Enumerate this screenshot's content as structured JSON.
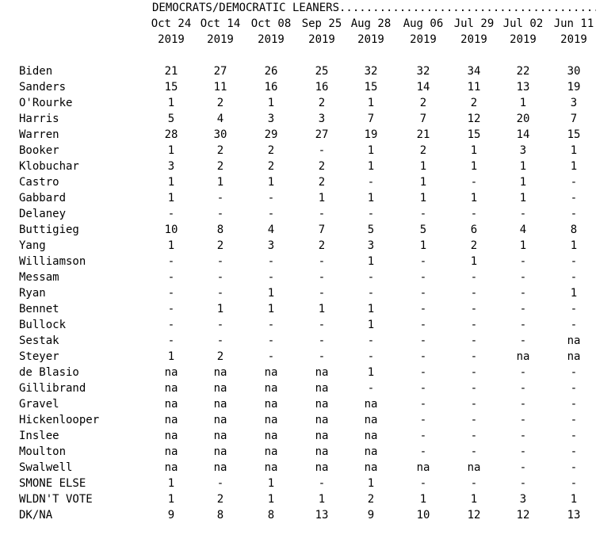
{
  "section_title": "DEMOCRATS/DEMOCRATIC LEANERS..........................................",
  "columns": [
    {
      "date": "Oct 24",
      "year": "2019"
    },
    {
      "date": "Oct 14",
      "year": "2019"
    },
    {
      "date": "Oct 08",
      "year": "2019"
    },
    {
      "date": "Sep 25",
      "year": "2019"
    },
    {
      "date": "Aug 28",
      "year": "2019"
    },
    {
      "date": "Aug 06",
      "year": "2019"
    },
    {
      "date": "Jul 29",
      "year": "2019"
    },
    {
      "date": "Jul 02",
      "year": "2019"
    },
    {
      "date": "Jun 11",
      "year": "2019"
    }
  ],
  "rows": [
    {
      "name": "Biden",
      "values": [
        "21",
        "27",
        "26",
        "25",
        "32",
        "32",
        "34",
        "22",
        "30"
      ]
    },
    {
      "name": "Sanders",
      "values": [
        "15",
        "11",
        "16",
        "16",
        "15",
        "14",
        "11",
        "13",
        "19"
      ]
    },
    {
      "name": "O'Rourke",
      "values": [
        "1",
        "2",
        "1",
        "2",
        "1",
        "2",
        "2",
        "1",
        "3"
      ]
    },
    {
      "name": "Harris",
      "values": [
        "5",
        "4",
        "3",
        "3",
        "7",
        "7",
        "12",
        "20",
        "7"
      ]
    },
    {
      "name": "Warren",
      "values": [
        "28",
        "30",
        "29",
        "27",
        "19",
        "21",
        "15",
        "14",
        "15"
      ]
    },
    {
      "name": "Booker",
      "values": [
        "1",
        "2",
        "2",
        "-",
        "1",
        "2",
        "1",
        "3",
        "1"
      ]
    },
    {
      "name": "Klobuchar",
      "values": [
        "3",
        "2",
        "2",
        "2",
        "1",
        "1",
        "1",
        "1",
        "1"
      ]
    },
    {
      "name": "Castro",
      "values": [
        "1",
        "1",
        "1",
        "2",
        "-",
        "1",
        "-",
        "1",
        "-"
      ]
    },
    {
      "name": "Gabbard",
      "values": [
        "1",
        "-",
        "-",
        "1",
        "1",
        "1",
        "1",
        "1",
        "-"
      ]
    },
    {
      "name": "Delaney",
      "values": [
        "-",
        "-",
        "-",
        "-",
        "-",
        "-",
        "-",
        "-",
        "-"
      ]
    },
    {
      "name": "Buttigieg",
      "values": [
        "10",
        "8",
        "4",
        "7",
        "5",
        "5",
        "6",
        "4",
        "8"
      ]
    },
    {
      "name": "Yang",
      "values": [
        "1",
        "2",
        "3",
        "2",
        "3",
        "1",
        "2",
        "1",
        "1"
      ]
    },
    {
      "name": "Williamson",
      "values": [
        "-",
        "-",
        "-",
        "-",
        "1",
        "-",
        "1",
        "-",
        "-"
      ]
    },
    {
      "name": "Messam",
      "values": [
        "-",
        "-",
        "-",
        "-",
        "-",
        "-",
        "-",
        "-",
        "-"
      ]
    },
    {
      "name": "Ryan",
      "values": [
        "-",
        "-",
        "1",
        "-",
        "-",
        "-",
        "-",
        "-",
        "1"
      ]
    },
    {
      "name": "Bennet",
      "values": [
        "-",
        "1",
        "1",
        "1",
        "1",
        "-",
        "-",
        "-",
        "-"
      ]
    },
    {
      "name": "Bullock",
      "values": [
        "-",
        "-",
        "-",
        "-",
        "1",
        "-",
        "-",
        "-",
        "-"
      ]
    },
    {
      "name": "Sestak",
      "values": [
        "-",
        "-",
        "-",
        "-",
        "-",
        "-",
        "-",
        "-",
        "na"
      ]
    },
    {
      "name": "Steyer",
      "values": [
        "1",
        "2",
        "-",
        "-",
        "-",
        "-",
        "-",
        "na",
        "na"
      ]
    },
    {
      "name": "de Blasio",
      "values": [
        "na",
        "na",
        "na",
        "na",
        "1",
        "-",
        "-",
        "-",
        "-"
      ]
    },
    {
      "name": "Gillibrand",
      "values": [
        "na",
        "na",
        "na",
        "na",
        "-",
        "-",
        "-",
        "-",
        "-"
      ]
    },
    {
      "name": "Gravel",
      "values": [
        "na",
        "na",
        "na",
        "na",
        "na",
        "-",
        "-",
        "-",
        "-"
      ]
    },
    {
      "name": "Hickenlooper",
      "values": [
        "na",
        "na",
        "na",
        "na",
        "na",
        "-",
        "-",
        "-",
        "-"
      ]
    },
    {
      "name": "Inslee",
      "values": [
        "na",
        "na",
        "na",
        "na",
        "na",
        "-",
        "-",
        "-",
        "-"
      ]
    },
    {
      "name": "Moulton",
      "values": [
        "na",
        "na",
        "na",
        "na",
        "na",
        "-",
        "-",
        "-",
        "-"
      ]
    },
    {
      "name": "Swalwell",
      "values": [
        "na",
        "na",
        "na",
        "na",
        "na",
        "na",
        "na",
        "-",
        "-"
      ]
    },
    {
      "name": "SMONE ELSE",
      "values": [
        "1",
        "-",
        "1",
        "-",
        "1",
        "-",
        "-",
        "-",
        "-"
      ]
    },
    {
      "name": "WLDN'T VOTE",
      "values": [
        "1",
        "2",
        "1",
        "1",
        "2",
        "1",
        "1",
        "3",
        "1"
      ]
    },
    {
      "name": "DK/NA",
      "values": [
        "9",
        "8",
        "8",
        "13",
        "9",
        "10",
        "12",
        "12",
        "13"
      ]
    }
  ]
}
